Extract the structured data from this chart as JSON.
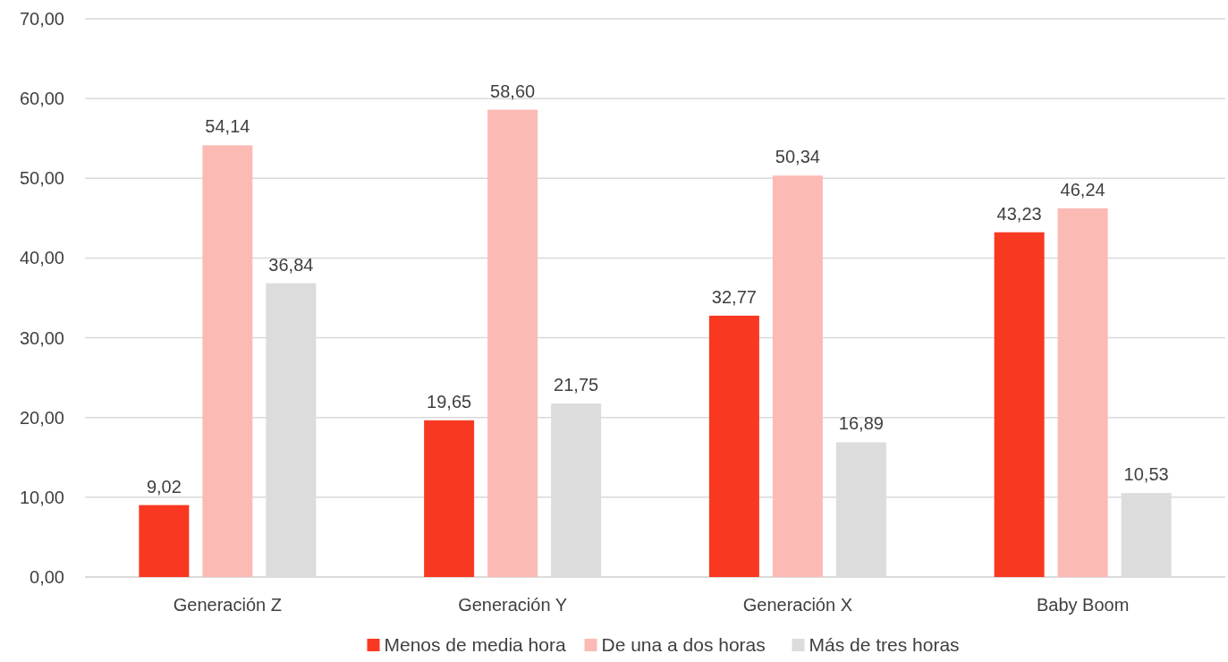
{
  "chart_data": {
    "type": "bar",
    "categories": [
      "Generación Z",
      "Generación Y",
      "Generación X",
      "Baby Boom"
    ],
    "series": [
      {
        "name": "Menos de media hora",
        "color": "#f93822",
        "values": [
          9.02,
          19.65,
          32.77,
          43.23
        ],
        "value_labels": [
          "9,02",
          "19,65",
          "32,77",
          "43,23"
        ]
      },
      {
        "name": "De una a dos horas",
        "color": "#fcbab5",
        "values": [
          54.14,
          58.6,
          50.34,
          46.24
        ],
        "value_labels": [
          "54,14",
          "58,60",
          "50,34",
          "46,24"
        ]
      },
      {
        "name": "Más de tres horas",
        "color": "#dcdcdc",
        "values": [
          36.84,
          21.75,
          16.89,
          10.53
        ],
        "value_labels": [
          "36,84",
          "21,75",
          "16,89",
          "10,53"
        ]
      }
    ],
    "ylim": [
      0,
      70
    ],
    "yticks": [
      {
        "value": 0,
        "label": "0,00"
      },
      {
        "value": 10,
        "label": "10,00"
      },
      {
        "value": 20,
        "label": "20,00"
      },
      {
        "value": 30,
        "label": "30,00"
      },
      {
        "value": 40,
        "label": "40,00"
      },
      {
        "value": 50,
        "label": "50,00"
      },
      {
        "value": 60,
        "label": "60,00"
      },
      {
        "value": 70,
        "label": "70,00"
      }
    ],
    "grid": "y",
    "legend": "bottom"
  }
}
